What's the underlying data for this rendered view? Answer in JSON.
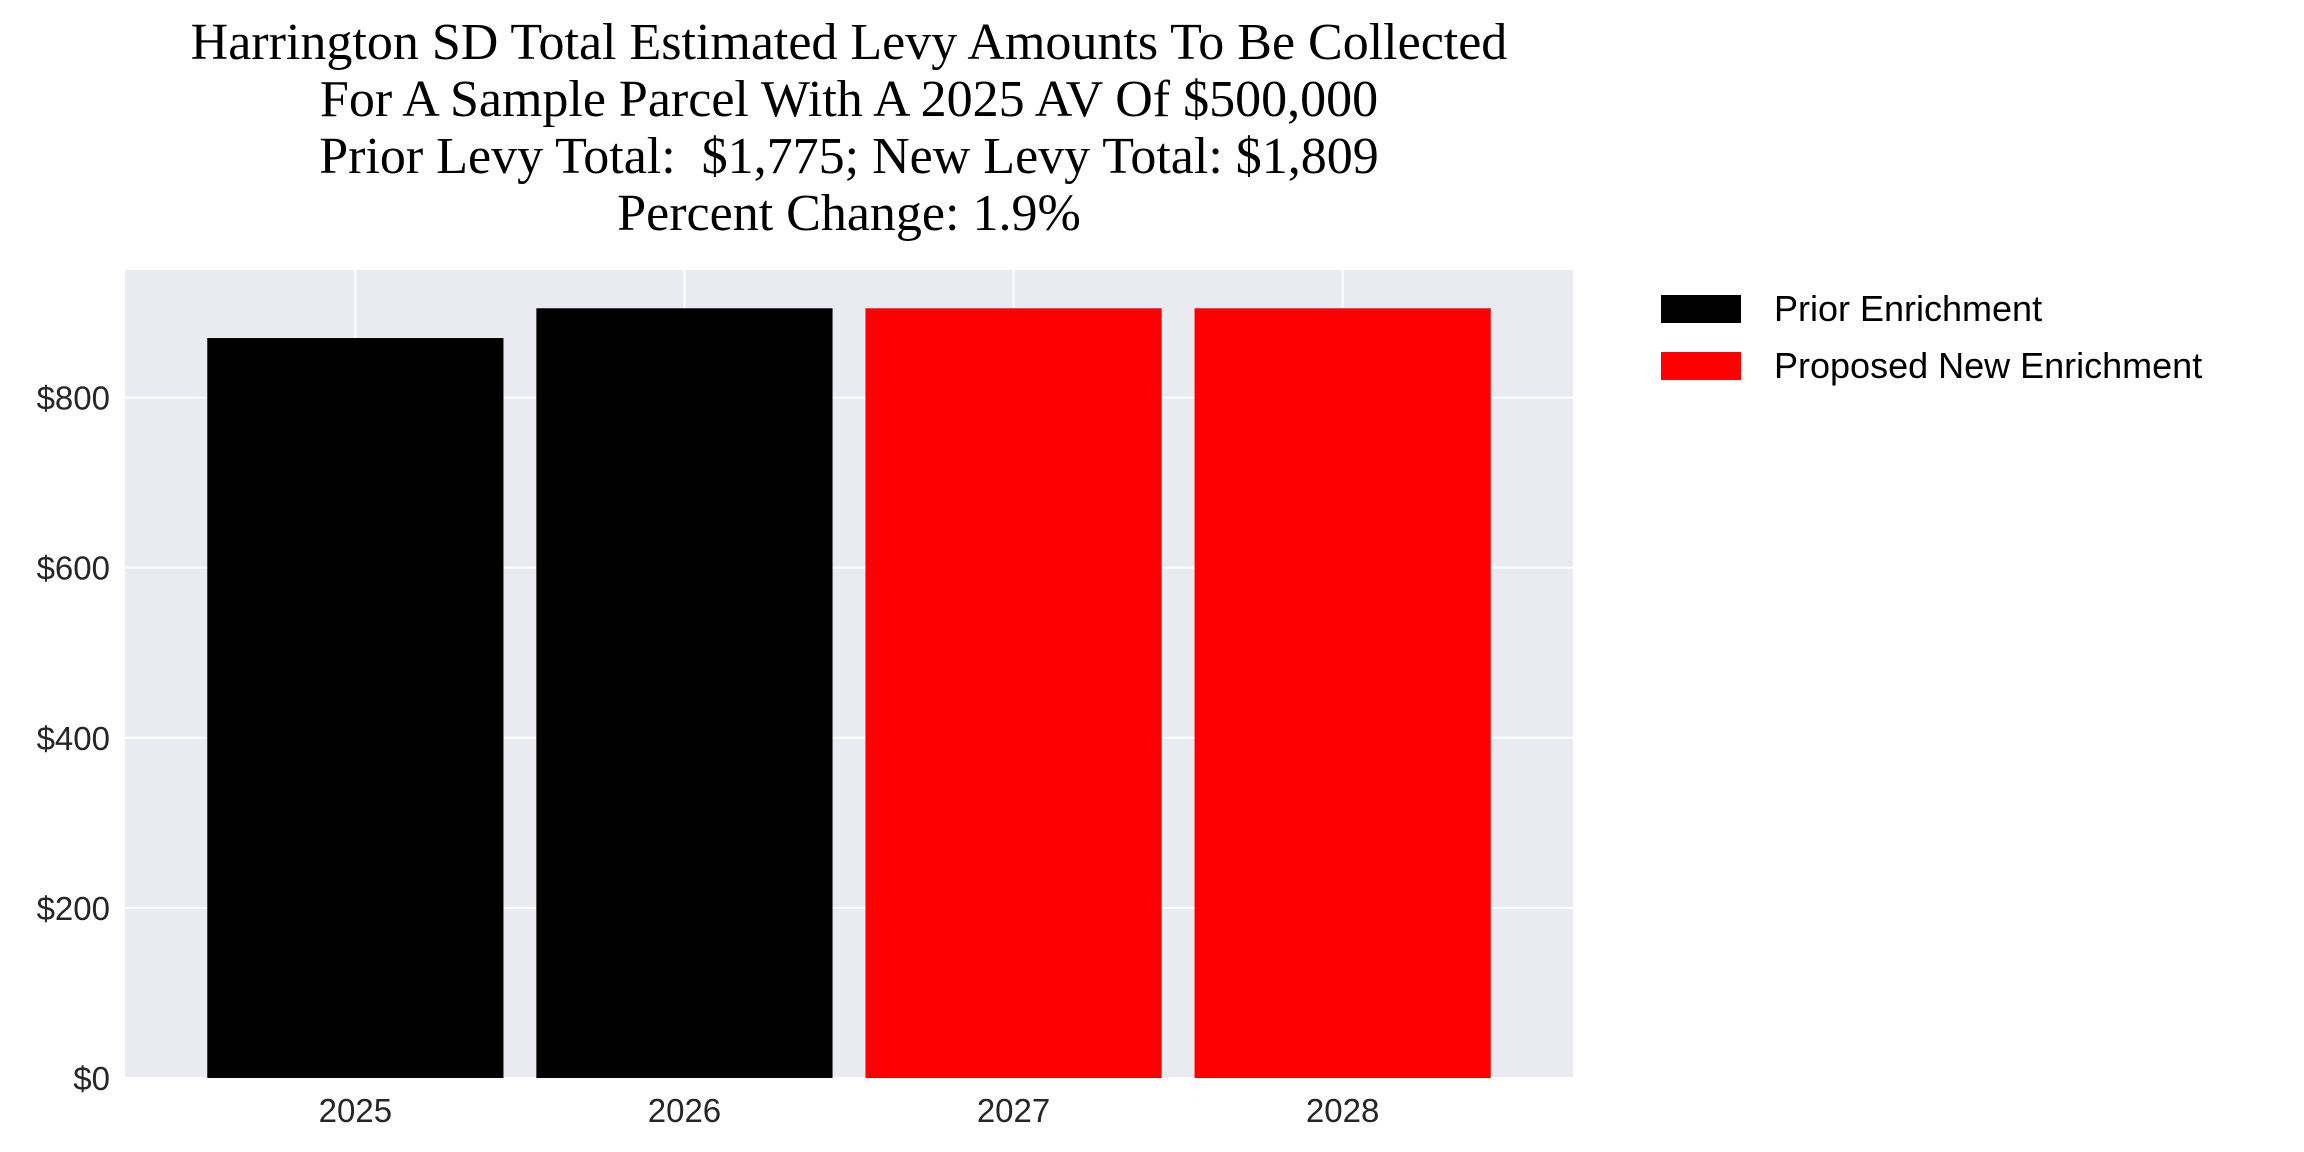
{
  "chart_data": {
    "type": "bar",
    "title": [
      "Harrington SD Total Estimated Levy Amounts To Be Collected",
      "For A Sample Parcel With A 2025 AV Of $500,000",
      "Prior Levy Total:  $1,775; New Levy Total: $1,809",
      "Percent Change: 1.9%"
    ],
    "categories": [
      "2025",
      "2026",
      "2027",
      "2028"
    ],
    "values": [
      870,
      905,
      905,
      905
    ],
    "bar_series": [
      "Prior Enrichment",
      "Prior Enrichment",
      "Proposed New Enrichment",
      "Proposed New Enrichment"
    ],
    "xlabel": "",
    "ylabel": "",
    "ylim": [
      0,
      950
    ],
    "yticks": [
      0,
      200,
      400,
      600,
      800
    ],
    "ytick_labels": [
      "$0",
      "$200",
      "$400",
      "$600",
      "$800"
    ],
    "grid": true,
    "legend_position": "outside-top-right",
    "legend": [
      {
        "name": "Prior Enrichment",
        "color": "#000000"
      },
      {
        "name": "Proposed New Enrichment",
        "color": "#ff0000"
      }
    ],
    "plot_background": "#eaeaf2"
  }
}
